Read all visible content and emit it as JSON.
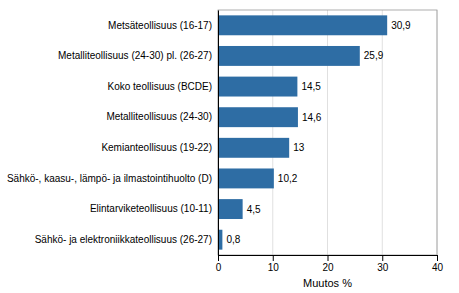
{
  "chart_data": {
    "type": "bar",
    "orientation": "horizontal",
    "categories": [
      "Metsäteollisuus (16-17)",
      "Metalliteollisuus (24-30) pl. (26-27)",
      "Koko teollisuus (BCDE)",
      "Metalliteollisuus (24-30)",
      "Kemianteollisuus (19-22)",
      "Sähkö-, kaasu-, lämpö- ja ilmastointihuolto (D)",
      "Elintarviketeollisuus (10-11)",
      "Sähkö- ja elektroniikkateollisuus (26-27)"
    ],
    "values": [
      30.9,
      25.9,
      14.5,
      14.6,
      13.0,
      10.2,
      4.5,
      0.8
    ],
    "value_labels": [
      "30,9",
      "25,9",
      "14,5",
      "14,6",
      "13",
      "10,2",
      "4,5",
      "0,8"
    ],
    "data_labels": true,
    "color": "#2E6DA4",
    "xlabel": "Muutos %",
    "xlim": [
      0,
      40
    ],
    "xticks": [
      0,
      10,
      20,
      30,
      40
    ],
    "grid": true
  }
}
